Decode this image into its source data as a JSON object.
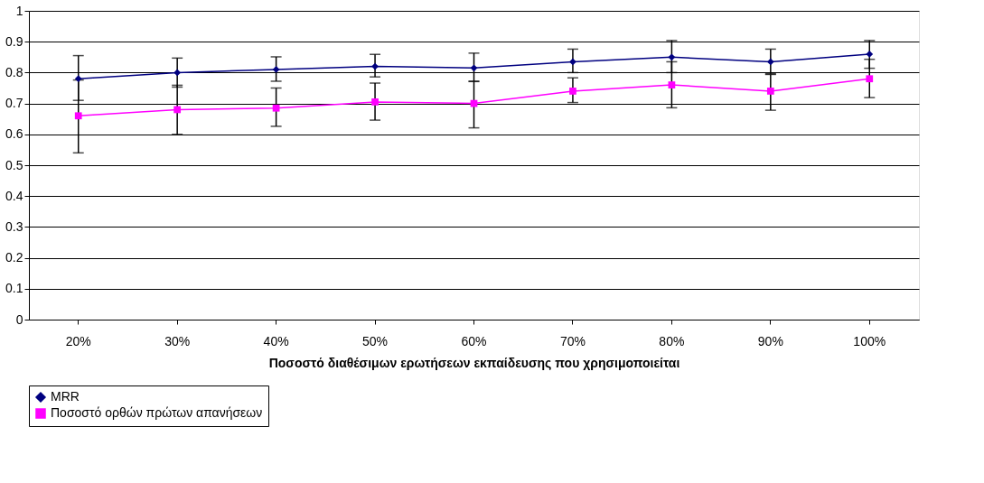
{
  "chart_data": {
    "type": "line",
    "categories": [
      "20%",
      "30%",
      "40%",
      "50%",
      "60%",
      "70%",
      "80%",
      "90%",
      "100%"
    ],
    "xlabel": "Ποσοστό διαθέσιμων ερωτήσεων εκπαίδευσης που χρησιμοποιείται",
    "ylim": [
      0,
      1
    ],
    "yticks": [
      0,
      0.1,
      0.2,
      0.3,
      0.4,
      0.5,
      0.6,
      0.7,
      0.8,
      0.9,
      1
    ],
    "grid": "y",
    "legend": "bottom",
    "series": [
      {
        "name": "MRR",
        "color": "#000080",
        "marker": "diamond",
        "values": [
          0.78,
          0.8,
          0.81,
          0.82,
          0.815,
          0.835,
          0.85,
          0.835,
          0.86
        ],
        "errors": [
          [
            0.71,
            0.855
          ],
          [
            0.753,
            0.847
          ],
          [
            0.772,
            0.851
          ],
          [
            0.786,
            0.859
          ],
          [
            0.772,
            0.863
          ],
          [
            0.8,
            0.876
          ],
          [
            0.8,
            0.904
          ],
          [
            0.796,
            0.876
          ],
          [
            0.814,
            0.904
          ]
        ]
      },
      {
        "name": "Ποσοστό ορθών πρώτων απανήσεων",
        "color": "#ff00ff",
        "marker": "square",
        "values": [
          0.66,
          0.68,
          0.685,
          0.705,
          0.7,
          0.74,
          0.76,
          0.74,
          0.78
        ],
        "errors": [
          [
            0.54,
            0.776
          ],
          [
            0.6,
            0.759
          ],
          [
            0.626,
            0.75
          ],
          [
            0.646,
            0.766
          ],
          [
            0.621,
            0.771
          ],
          [
            0.703,
            0.783
          ],
          [
            0.686,
            0.835
          ],
          [
            0.678,
            0.794
          ],
          [
            0.719,
            0.843
          ]
        ]
      }
    ]
  }
}
